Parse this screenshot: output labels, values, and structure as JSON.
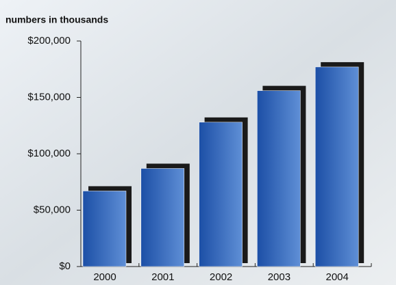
{
  "chart_data": {
    "type": "bar",
    "title": "numbers in thousands",
    "categories": [
      "2000",
      "2001",
      "2002",
      "2003",
      "2004"
    ],
    "values": [
      67000,
      87000,
      128000,
      156000,
      177000
    ],
    "color": "#2a5db0",
    "ylim": [
      0,
      200000
    ],
    "yticks": [
      {
        "value": 0,
        "label": "$0"
      },
      {
        "value": 50000,
        "label": "$50,000"
      },
      {
        "value": 100000,
        "label": "$100,000"
      },
      {
        "value": 150000,
        "label": "$150,000"
      },
      {
        "value": 200000,
        "label": "$200,000"
      }
    ]
  }
}
